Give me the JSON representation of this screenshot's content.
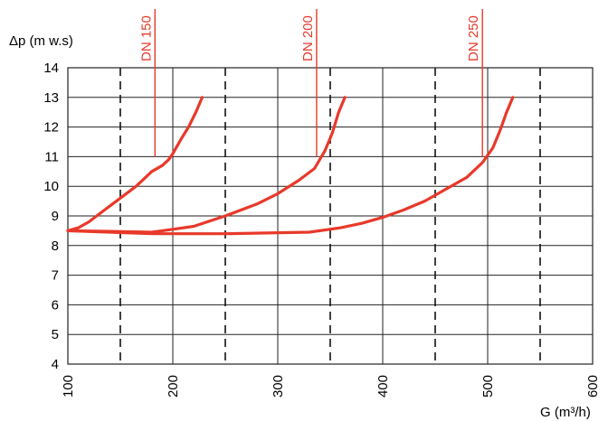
{
  "chart_data": {
    "type": "line",
    "ylabel": "Δp (m w.s)",
    "xlabel": "G (m³/h)",
    "xlim": [
      100,
      600
    ],
    "ylim": [
      4,
      14
    ],
    "x_ticks": [
      100,
      200,
      300,
      400,
      500,
      600
    ],
    "y_ticks": [
      4,
      5,
      6,
      7,
      8,
      9,
      10,
      11,
      12,
      13,
      14
    ],
    "solid_gridlines_x": [
      100,
      200,
      300,
      400,
      500,
      600
    ],
    "dashed_gridlines_x": [
      150,
      250,
      350,
      450,
      550
    ],
    "horizontal_grid": true,
    "series_color": "#e8392a",
    "series": [
      {
        "name": "DN 150",
        "label_x": 183,
        "x": [
          100,
          110,
          120,
          135,
          150,
          165,
          180,
          190,
          196,
          200,
          208,
          215,
          222,
          228
        ],
        "y": [
          8.5,
          8.6,
          8.8,
          9.2,
          9.6,
          10.0,
          10.5,
          10.7,
          10.9,
          11.1,
          11.6,
          12.0,
          12.5,
          13.0
        ]
      },
      {
        "name": "DN 200",
        "label_x": 337,
        "x": [
          100,
          140,
          180,
          200,
          220,
          250,
          280,
          300,
          320,
          335,
          345,
          352,
          358,
          364
        ],
        "y": [
          8.5,
          8.48,
          8.45,
          8.55,
          8.65,
          9.0,
          9.4,
          9.75,
          10.2,
          10.6,
          11.2,
          11.8,
          12.5,
          13.0
        ]
      },
      {
        "name": "DN 250",
        "label_x": 495,
        "x": [
          100,
          180,
          250,
          330,
          360,
          380,
          400,
          420,
          440,
          460,
          480,
          495,
          505,
          512,
          518,
          524
        ],
        "y": [
          8.5,
          8.4,
          8.4,
          8.45,
          8.6,
          8.75,
          8.95,
          9.2,
          9.5,
          9.9,
          10.3,
          10.8,
          11.3,
          11.9,
          12.5,
          13.0
        ]
      }
    ]
  }
}
